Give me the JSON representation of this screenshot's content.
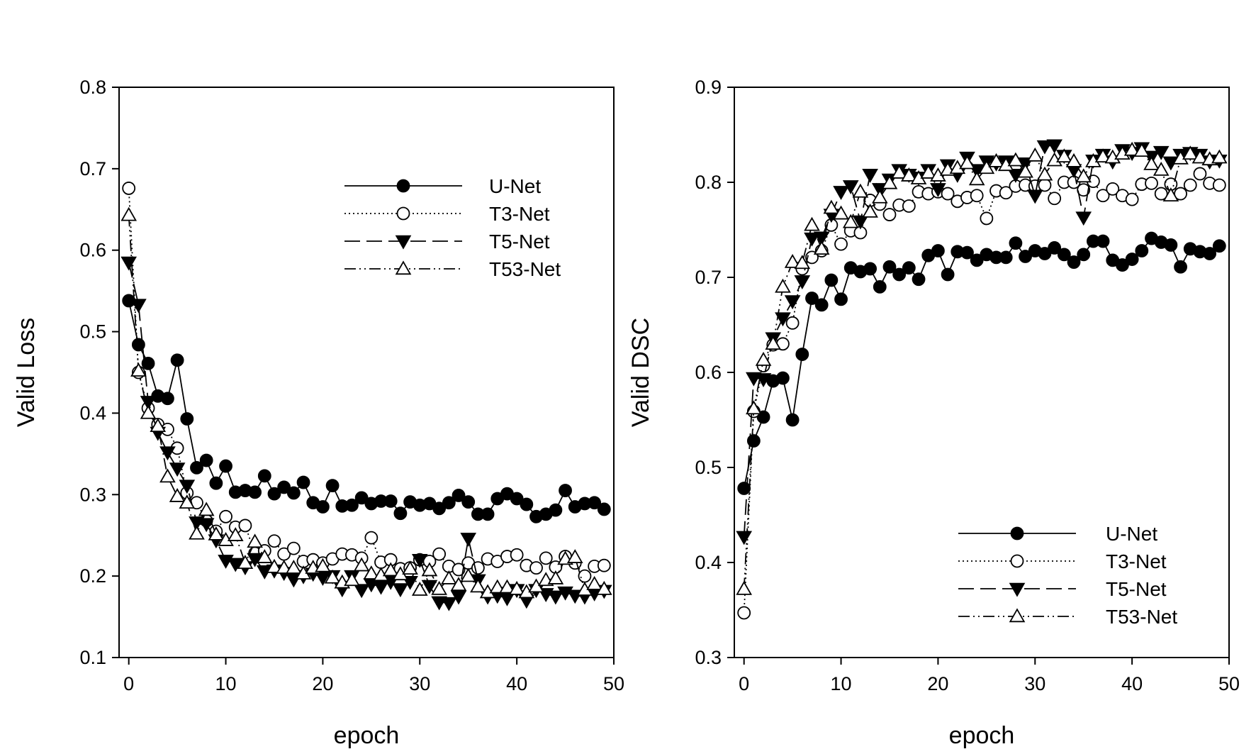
{
  "chart_data": [
    {
      "type": "line",
      "title": "",
      "xlabel": "epoch",
      "ylabel": "Valid Loss",
      "xlim": [
        -1,
        50
      ],
      "ylim": [
        0.1,
        0.8
      ],
      "xticks": [
        0,
        10,
        20,
        30,
        40,
        50
      ],
      "yticks": [
        0.1,
        0.2,
        0.3,
        0.4,
        0.5,
        0.6,
        0.7,
        0.8
      ],
      "grid": false,
      "legend_position": "top-right",
      "x": [
        0,
        1,
        2,
        3,
        4,
        5,
        6,
        7,
        8,
        9,
        10,
        11,
        12,
        13,
        14,
        15,
        16,
        17,
        18,
        19,
        20,
        21,
        22,
        23,
        24,
        25,
        26,
        27,
        28,
        29,
        30,
        31,
        32,
        33,
        34,
        35,
        36,
        37,
        38,
        39,
        40,
        41,
        42,
        43,
        44,
        45,
        46,
        47,
        48,
        49
      ],
      "series": [
        {
          "name": "U-Net",
          "line": "solid",
          "marker": "circle-filled",
          "values": [
            0.538,
            0.484,
            0.461,
            0.421,
            0.418,
            0.465,
            0.393,
            0.333,
            0.342,
            0.314,
            0.335,
            0.303,
            0.305,
            0.303,
            0.323,
            0.301,
            0.309,
            0.302,
            0.315,
            0.29,
            0.285,
            0.311,
            0.286,
            0.287,
            0.296,
            0.289,
            0.292,
            0.292,
            0.277,
            0.291,
            0.287,
            0.289,
            0.283,
            0.29,
            0.299,
            0.291,
            0.276,
            0.276,
            0.295,
            0.301,
            0.295,
            0.288,
            0.273,
            0.276,
            0.281,
            0.305,
            0.285,
            0.289,
            0.29,
            0.282
          ]
        },
        {
          "name": "T3-Net",
          "line": "dotted",
          "marker": "circle-open",
          "values": [
            0.676,
            0.45,
            0.406,
            0.386,
            0.38,
            0.357,
            0.302,
            0.29,
            0.268,
            0.255,
            0.273,
            0.26,
            0.262,
            0.228,
            0.231,
            0.243,
            0.227,
            0.234,
            0.218,
            0.22,
            0.216,
            0.221,
            0.227,
            0.226,
            0.222,
            0.247,
            0.217,
            0.22,
            0.209,
            0.21,
            0.22,
            0.218,
            0.227,
            0.212,
            0.208,
            0.216,
            0.21,
            0.221,
            0.218,
            0.224,
            0.226,
            0.213,
            0.21,
            0.222,
            0.211,
            0.224,
            0.216,
            0.2,
            0.212,
            0.213
          ]
        },
        {
          "name": "T5-Net",
          "line": "dashed",
          "marker": "triangle-down-filled",
          "values": [
            0.585,
            0.533,
            0.414,
            0.376,
            0.352,
            0.332,
            0.311,
            0.266,
            0.264,
            0.244,
            0.219,
            0.215,
            0.211,
            0.221,
            0.206,
            0.207,
            0.204,
            0.196,
            0.2,
            0.203,
            0.198,
            0.2,
            0.184,
            0.2,
            0.183,
            0.19,
            0.187,
            0.193,
            0.184,
            0.193,
            0.22,
            0.188,
            0.168,
            0.167,
            0.175,
            0.246,
            0.195,
            0.175,
            0.176,
            0.173,
            0.183,
            0.17,
            0.183,
            0.178,
            0.175,
            0.18,
            0.176,
            0.175,
            0.179,
            0.182
          ]
        },
        {
          "name": "T53-Net",
          "line": "dashdotdot",
          "marker": "triangle-up-open",
          "values": [
            0.643,
            0.452,
            0.4,
            0.384,
            0.322,
            0.298,
            0.29,
            0.252,
            0.281,
            0.251,
            0.244,
            0.25,
            0.216,
            0.242,
            0.223,
            0.211,
            0.21,
            0.21,
            0.203,
            0.21,
            0.212,
            0.198,
            0.192,
            0.195,
            0.213,
            0.203,
            0.201,
            0.207,
            0.202,
            0.209,
            0.183,
            0.207,
            0.184,
            0.197,
            0.189,
            0.2,
            0.187,
            0.18,
            0.186,
            0.186,
            0.184,
            0.18,
            0.187,
            0.195,
            0.197,
            0.221,
            0.223,
            0.183,
            0.19,
            0.184
          ]
        }
      ]
    },
    {
      "type": "line",
      "title": "",
      "xlabel": "epoch",
      "ylabel": "Valid DSC",
      "xlim": [
        -1,
        50
      ],
      "ylim": [
        0.3,
        0.9
      ],
      "xticks": [
        0,
        10,
        20,
        30,
        40,
        50
      ],
      "yticks": [
        0.3,
        0.4,
        0.5,
        0.6,
        0.7,
        0.8,
        0.9
      ],
      "grid": false,
      "legend_position": "bottom-right",
      "x": [
        0,
        1,
        2,
        3,
        4,
        5,
        6,
        7,
        8,
        9,
        10,
        11,
        12,
        13,
        14,
        15,
        16,
        17,
        18,
        19,
        20,
        21,
        22,
        23,
        24,
        25,
        26,
        27,
        28,
        29,
        30,
        31,
        32,
        33,
        34,
        35,
        36,
        37,
        38,
        39,
        40,
        41,
        42,
        43,
        44,
        45,
        46,
        47,
        48,
        49
      ],
      "series": [
        {
          "name": "U-Net",
          "line": "solid",
          "marker": "circle-filled",
          "values": [
            0.478,
            0.528,
            0.553,
            0.591,
            0.594,
            0.55,
            0.619,
            0.678,
            0.671,
            0.697,
            0.677,
            0.71,
            0.706,
            0.709,
            0.69,
            0.711,
            0.703,
            0.71,
            0.698,
            0.723,
            0.728,
            0.703,
            0.727,
            0.726,
            0.718,
            0.724,
            0.721,
            0.721,
            0.736,
            0.722,
            0.728,
            0.725,
            0.731,
            0.724,
            0.716,
            0.724,
            0.738,
            0.738,
            0.718,
            0.713,
            0.719,
            0.728,
            0.741,
            0.737,
            0.734,
            0.711,
            0.73,
            0.727,
            0.725,
            0.733
          ]
        },
        {
          "name": "T3-Net",
          "line": "dotted",
          "marker": "circle-open",
          "values": [
            0.347,
            0.559,
            0.607,
            0.629,
            0.63,
            0.652,
            0.709,
            0.721,
            0.728,
            0.755,
            0.735,
            0.749,
            0.747,
            0.781,
            0.777,
            0.766,
            0.776,
            0.775,
            0.79,
            0.788,
            0.79,
            0.788,
            0.78,
            0.784,
            0.786,
            0.762,
            0.791,
            0.789,
            0.796,
            0.797,
            0.796,
            0.797,
            0.783,
            0.8,
            0.8,
            0.792,
            0.801,
            0.786,
            0.793,
            0.786,
            0.782,
            0.798,
            0.799,
            0.788,
            0.798,
            0.788,
            0.797,
            0.809,
            0.799,
            0.797
          ]
        },
        {
          "name": "T5-Net",
          "line": "dashed",
          "marker": "triangle-down-filled",
          "values": [
            0.427,
            0.594,
            0.593,
            0.636,
            0.657,
            0.675,
            0.696,
            0.741,
            0.742,
            0.766,
            0.79,
            0.796,
            0.759,
            0.808,
            0.793,
            0.803,
            0.813,
            0.808,
            0.805,
            0.813,
            0.793,
            0.818,
            0.808,
            0.826,
            0.813,
            0.822,
            0.82,
            0.822,
            0.808,
            0.82,
            0.786,
            0.838,
            0.839,
            0.828,
            0.813,
            0.763,
            0.823,
            0.829,
            0.822,
            0.834,
            0.831,
            0.836,
            0.827,
            0.832,
            0.821,
            0.829,
            0.831,
            0.829,
            0.822,
            0.823
          ]
        },
        {
          "name": "T53-Net",
          "line": "dashdotdot",
          "marker": "triangle-up-open",
          "values": [
            0.372,
            0.562,
            0.613,
            0.63,
            0.69,
            0.716,
            0.715,
            0.755,
            0.73,
            0.773,
            0.767,
            0.758,
            0.79,
            0.769,
            0.784,
            0.799,
            0.81,
            0.807,
            0.804,
            0.81,
            0.807,
            0.813,
            0.815,
            0.82,
            0.803,
            0.815,
            0.822,
            0.818,
            0.823,
            0.811,
            0.828,
            0.808,
            0.823,
            0.827,
            0.822,
            0.806,
            0.822,
            0.827,
            0.826,
            0.83,
            0.834,
            0.833,
            0.819,
            0.813,
            0.786,
            0.825,
            0.83,
            0.826,
            0.824,
            0.826
          ]
        }
      ]
    }
  ]
}
